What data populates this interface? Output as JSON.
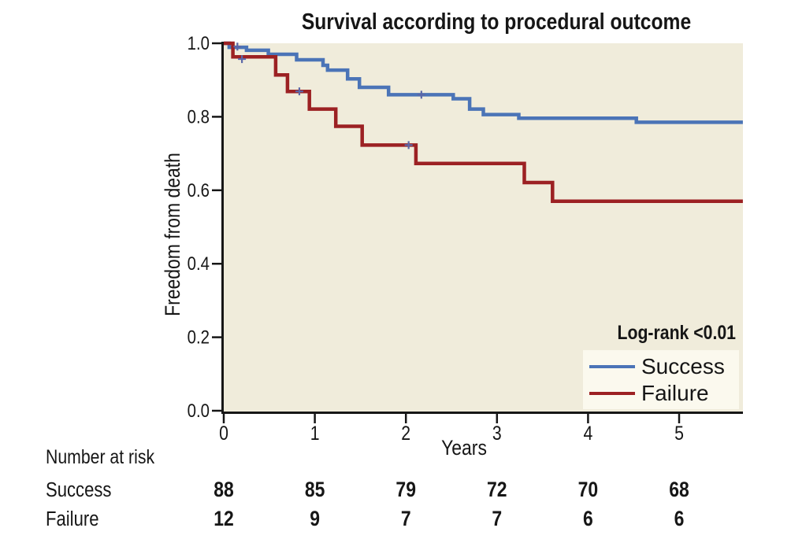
{
  "title": "Survival according to procedural outcome",
  "annotation": "Log-rank <0.01",
  "colors": {
    "success": "#4b74b7",
    "failure": "#9c2123",
    "axis": "#161616",
    "plot_background": "#f0ecdb",
    "legend_background": "#fbf9ee",
    "censor_mark": "#5b67a8",
    "page_background": "#ffffff"
  },
  "legend": {
    "items": [
      {
        "label": "Success",
        "color": "#4b74b7"
      },
      {
        "label": "Failure",
        "color": "#9c2123"
      }
    ]
  },
  "chart_data": {
    "type": "line",
    "subtype": "kaplan-meier-step",
    "title": "Survival according to procedural outcome",
    "xlabel": "Years",
    "ylabel": "Freedom from death",
    "xlim": [
      0,
      5.7
    ],
    "ylim": [
      0.0,
      1.0
    ],
    "x_ticks": [
      0,
      1,
      2,
      3,
      4,
      5
    ],
    "x_tick_labels": [
      "0",
      "1",
      "2",
      "3",
      "4",
      "5"
    ],
    "y_ticks": [
      1.0,
      0.8,
      0.6,
      0.4,
      0.2,
      0.0
    ],
    "y_tick_labels": [
      "1.0",
      "0.8",
      "0.6",
      "0.4",
      "0.2",
      "0.0"
    ],
    "grid": false,
    "legend_position": "bottom-right",
    "annotation": "Log-rank <0.01",
    "series": [
      {
        "name": "Success",
        "color": "#4b74b7",
        "points": [
          [
            0,
            1.0
          ],
          [
            0.06,
            0.989
          ],
          [
            0.25,
            0.981
          ],
          [
            0.49,
            0.97
          ],
          [
            0.8,
            0.955
          ],
          [
            1.09,
            0.94
          ],
          [
            1.14,
            0.927
          ],
          [
            1.36,
            0.903
          ],
          [
            1.49,
            0.88
          ],
          [
            1.81,
            0.86
          ],
          [
            2.52,
            0.849
          ],
          [
            2.7,
            0.821
          ],
          [
            2.85,
            0.806
          ],
          [
            3.24,
            0.796
          ],
          [
            4.53,
            0.785
          ],
          [
            5.7,
            0.785
          ]
        ],
        "censor_marks": [
          [
            0.15,
            0.991
          ],
          [
            2.17,
            0.86
          ]
        ]
      },
      {
        "name": "Failure",
        "color": "#9c2123",
        "points": [
          [
            0,
            1.0
          ],
          [
            0.1,
            0.963
          ],
          [
            0.57,
            0.914
          ],
          [
            0.7,
            0.869
          ],
          [
            0.94,
            0.821
          ],
          [
            1.23,
            0.774
          ],
          [
            1.52,
            0.723
          ],
          [
            2.11,
            0.673
          ],
          [
            3.3,
            0.621
          ],
          [
            3.61,
            0.57
          ],
          [
            5.7,
            0.57
          ]
        ],
        "censor_marks": [
          [
            0.2,
            0.957
          ],
          [
            0.83,
            0.869
          ],
          [
            2.03,
            0.723
          ]
        ]
      }
    ]
  },
  "risk_table": {
    "heading": "Number at risk",
    "time_points": [
      0,
      1,
      2,
      3,
      4,
      5
    ],
    "rows": [
      {
        "label": "Success",
        "color": "#4b74b7",
        "values": [
          "88",
          "85",
          "79",
          "72",
          "70",
          "68"
        ]
      },
      {
        "label": "Failure",
        "color": "#9c2123",
        "values": [
          "12",
          "9",
          "7",
          "7",
          "6",
          "6"
        ]
      }
    ]
  }
}
